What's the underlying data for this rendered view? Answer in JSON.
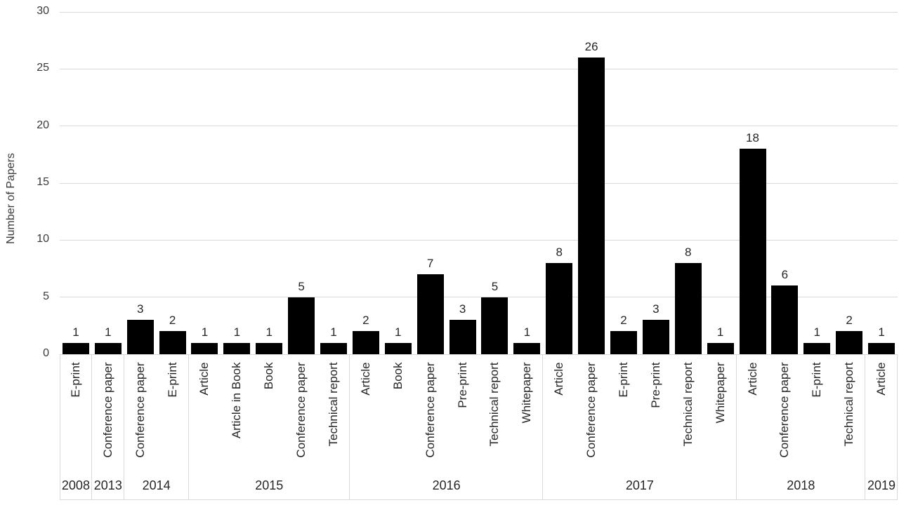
{
  "chart_data": {
    "type": "bar",
    "title": "",
    "xlabel": "",
    "ylabel": "Number of Papers",
    "ylim": [
      0,
      30
    ],
    "yticks": [
      0,
      5,
      10,
      15,
      20,
      25,
      30
    ],
    "grid": true,
    "legend": "none",
    "bar_color": "#000000",
    "grid_color": "#d9d9d9",
    "text_color": "#262626",
    "tick_text_color": "#3a3a3a",
    "groups": [
      {
        "year": "2008",
        "items": [
          {
            "label": "E-print",
            "value": 1
          }
        ]
      },
      {
        "year": "2013",
        "items": [
          {
            "label": "Conference paper",
            "value": 1
          }
        ]
      },
      {
        "year": "2014",
        "items": [
          {
            "label": "Conference paper",
            "value": 3
          },
          {
            "label": "E-print",
            "value": 2
          }
        ]
      },
      {
        "year": "2015",
        "items": [
          {
            "label": "Article",
            "value": 1
          },
          {
            "label": "Article in Book",
            "value": 1
          },
          {
            "label": "Book",
            "value": 1
          },
          {
            "label": "Conference paper",
            "value": 5
          },
          {
            "label": "Technical report",
            "value": 1
          }
        ]
      },
      {
        "year": "2016",
        "items": [
          {
            "label": "Article",
            "value": 2
          },
          {
            "label": "Book",
            "value": 1
          },
          {
            "label": "Conference paper",
            "value": 7
          },
          {
            "label": "Pre-print",
            "value": 3
          },
          {
            "label": "Technical report",
            "value": 5
          },
          {
            "label": "Whitepaper",
            "value": 1
          }
        ]
      },
      {
        "year": "2017",
        "items": [
          {
            "label": "Article",
            "value": 8
          },
          {
            "label": "Conference paper",
            "value": 26
          },
          {
            "label": "E-print",
            "value": 2
          },
          {
            "label": "Pre-print",
            "value": 3
          },
          {
            "label": "Technical report",
            "value": 8
          },
          {
            "label": "Whitepaper",
            "value": 1
          }
        ]
      },
      {
        "year": "2018",
        "items": [
          {
            "label": "Article",
            "value": 18
          },
          {
            "label": "Conference paper",
            "value": 6
          },
          {
            "label": "E-print",
            "value": 1
          },
          {
            "label": "Technical report",
            "value": 2
          }
        ]
      },
      {
        "year": "2019",
        "items": [
          {
            "label": "Article",
            "value": 1
          }
        ]
      }
    ]
  }
}
